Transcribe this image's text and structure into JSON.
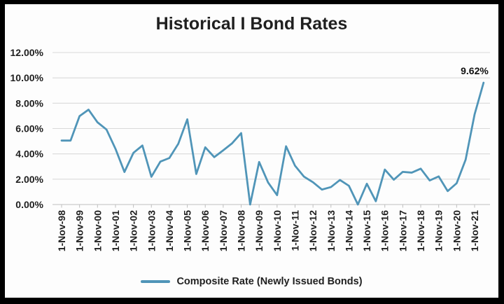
{
  "title": "Historical I Bond Rates",
  "legend": {
    "label": "Composite Rate (Newly Issued Bonds)"
  },
  "data_label": "9.62%",
  "colors": {
    "line": "#5095B8",
    "gridline": "#D9D9D9",
    "axis": "#BFBFBF",
    "text": "#1F1F1F",
    "background": "#FDFDFD",
    "frame": "#000000"
  },
  "chart_data": {
    "type": "line",
    "title": "Historical I Bond Rates",
    "xlabel": "",
    "ylabel": "",
    "ylim": [
      0,
      12
    ],
    "grid": true,
    "legend_position": "bottom",
    "y_tick_labels": [
      "12.00%",
      "10.00%",
      "8.00%",
      "6.00%",
      "4.00%",
      "2.00%",
      "0.00%"
    ],
    "x_tick_labels": [
      "1-Nov-98",
      "1-Nov-99",
      "1-Nov-00",
      "1-Nov-01",
      "1-Nov-02",
      "1-Nov-03",
      "1-Nov-04",
      "1-Nov-05",
      "1-Nov-06",
      "1-Nov-07",
      "1-Nov-08",
      "1-Nov-09",
      "1-Nov-10",
      "1-Nov-11",
      "1-Nov-12",
      "1-Nov-13",
      "1-Nov-14",
      "1-Nov-15",
      "1-Nov-16",
      "1-Nov-17",
      "1-Nov-18",
      "1-Nov-19",
      "1-Nov-20",
      "1-Nov-21"
    ],
    "x": [
      "Nov-98",
      "May-99",
      "Nov-99",
      "May-00",
      "Nov-00",
      "May-01",
      "Nov-01",
      "May-02",
      "Nov-02",
      "May-03",
      "Nov-03",
      "May-04",
      "Nov-04",
      "May-05",
      "Nov-05",
      "May-06",
      "Nov-06",
      "May-07",
      "Nov-07",
      "May-08",
      "Nov-08",
      "May-09",
      "Nov-09",
      "May-10",
      "Nov-10",
      "May-11",
      "Nov-11",
      "May-12",
      "Nov-12",
      "May-13",
      "Nov-13",
      "May-14",
      "Nov-14",
      "May-15",
      "Nov-15",
      "May-16",
      "Nov-16",
      "May-17",
      "Nov-17",
      "May-18",
      "Nov-18",
      "May-19",
      "Nov-19",
      "May-20",
      "Nov-20",
      "May-21",
      "Nov-21",
      "May-22"
    ],
    "series": [
      {
        "name": "Composite Rate (Newly Issued Bonds)",
        "values": [
          5.05,
          5.05,
          6.98,
          7.49,
          6.49,
          5.92,
          4.4,
          2.57,
          4.08,
          4.66,
          2.19,
          3.39,
          3.67,
          4.8,
          6.73,
          2.41,
          4.52,
          3.74,
          4.28,
          4.84,
          5.64,
          0.0,
          3.36,
          1.74,
          0.74,
          4.6,
          3.06,
          2.2,
          1.76,
          1.18,
          1.38,
          1.94,
          1.48,
          0.0,
          1.64,
          0.26,
          2.76,
          1.96,
          2.58,
          2.52,
          2.83,
          1.9,
          2.22,
          1.06,
          1.68,
          3.54,
          7.12,
          9.62
        ]
      }
    ],
    "annotation": {
      "text": "9.62%",
      "attached_to": "May-22"
    }
  }
}
